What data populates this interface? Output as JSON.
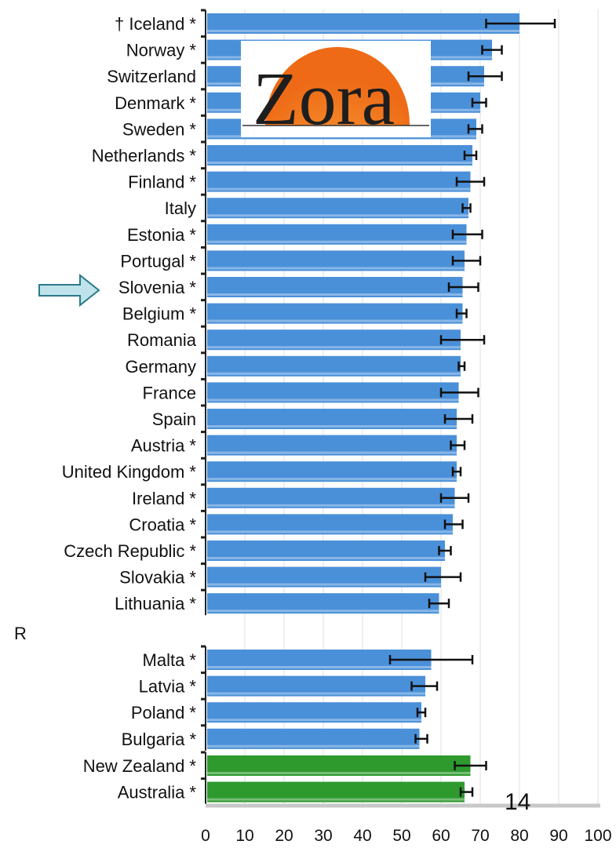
{
  "chart_data": {
    "type": "bar",
    "orientation": "horizontal",
    "xlim": [
      0,
      100
    ],
    "xticks": [
      0,
      10,
      20,
      30,
      40,
      50,
      60,
      70,
      80,
      90,
      100
    ],
    "grid": true,
    "groups": [
      {
        "categories": [
          "† Iceland *",
          "Norway *",
          "Switzerland",
          "Denmark *",
          "Sweden *",
          "Netherlands *",
          "Finland *",
          "Italy",
          "Estonia *",
          "Portugal *",
          "Slovenia *",
          "Belgium *",
          "Romania",
          "Germany",
          "France",
          "Spain",
          "Austria *",
          "United Kingdom *",
          "Ireland *",
          "Croatia *",
          "Czech Republic *",
          "Slovakia *",
          "Lithuania *"
        ],
        "values": [
          80,
          73,
          71,
          70,
          69,
          68,
          67.5,
          67,
          66.5,
          66,
          65.5,
          65.5,
          65,
          65,
          64.5,
          64,
          64,
          64,
          63.5,
          63,
          61,
          60,
          59.5
        ],
        "error_low": [
          71.5,
          70.5,
          67,
          68,
          67,
          66,
          64,
          65.5,
          63,
          63,
          62,
          64,
          60,
          64.5,
          60,
          61,
          62.5,
          63,
          60,
          61,
          59.5,
          56,
          57
        ],
        "error_high": [
          89,
          75.5,
          75.5,
          71.5,
          70.5,
          69,
          71,
          67.5,
          70.5,
          70,
          69.5,
          66.5,
          71,
          66,
          69.5,
          68,
          66,
          65,
          67,
          65.5,
          62.5,
          65,
          62
        ],
        "color": "#4a90d9"
      },
      {
        "categories": [
          "Malta *",
          "Latvia *",
          "Poland *",
          "Bulgaria *"
        ],
        "values": [
          57.5,
          56,
          55,
          54.5
        ],
        "error_low": [
          47,
          52.5,
          54,
          53.5
        ],
        "error_high": [
          68,
          59,
          56,
          56.5
        ],
        "color": "#4a90d9"
      },
      {
        "categories": [
          "New Zealand *",
          "Australia *"
        ],
        "values": [
          67.5,
          66
        ],
        "error_low": [
          63.5,
          65
        ],
        "error_high": [
          71.5,
          68
        ],
        "color": "#2e9a2e"
      }
    ],
    "highlight": "Slovenia *",
    "margin_text": "R"
  },
  "logo": {
    "text": "Zora",
    "sun_color": "#f07820"
  },
  "page_number": "14",
  "colors": {
    "bar_blue": "#4a90d9",
    "bar_green": "#2e9a2e",
    "arrow_fill": "#bfe3ea"
  }
}
